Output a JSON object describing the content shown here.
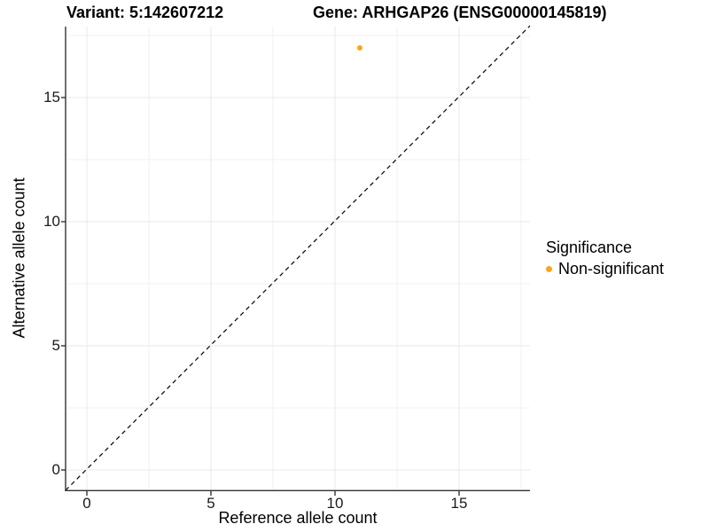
{
  "titles": {
    "variant": "Variant: 5:142607212",
    "gene": "Gene: ARHGAP26 (ENSG00000145819)"
  },
  "axes": {
    "x": {
      "label": "Reference allele count",
      "ticks": [
        "0",
        "5",
        "10",
        "15"
      ]
    },
    "y": {
      "label": "Alternative allele count",
      "ticks": [
        "0",
        "5",
        "10",
        "15"
      ]
    }
  },
  "legend": {
    "title": "Significance",
    "items": [
      {
        "label": "Non-significant",
        "color": "#FFA319"
      }
    ]
  },
  "colors": {
    "background": "#ffffff",
    "major_grid": "#e8e8e8",
    "minor_grid": "#f2f2f2",
    "axis_line": "#333333",
    "reference_line": "#000000",
    "point": "#FFA319"
  },
  "chart_data": {
    "type": "scatter",
    "title": "Variant: 5:142607212   Gene: ARHGAP26 (ENSG00000145819)",
    "xlabel": "Reference allele count",
    "ylabel": "Alternative allele count",
    "xlim": [
      -0.85,
      17.85
    ],
    "ylim": [
      -0.85,
      17.85
    ],
    "x_ticks": [
      0,
      5,
      10,
      15
    ],
    "y_ticks": [
      0,
      5,
      10,
      15
    ],
    "grid": "major every 5, minor every 2.5, light gray on white",
    "legend_position": "right",
    "series": [
      {
        "name": "Non-significant",
        "color": "#FFA319",
        "points": [
          {
            "x": 11,
            "y": 17
          }
        ]
      }
    ],
    "reference_line": {
      "type": "identity y=x",
      "style": "dashed",
      "color": "#000000"
    }
  }
}
